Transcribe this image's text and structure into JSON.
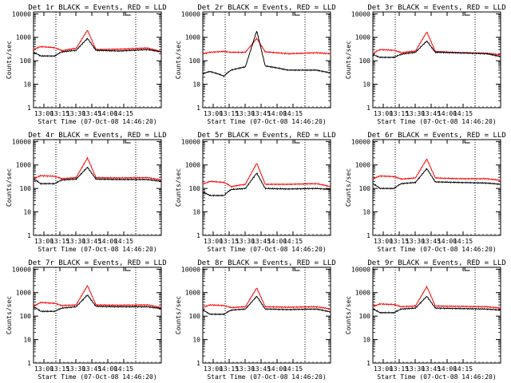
{
  "common": {
    "xlabel": "Start Time (07-Oct-08 14:46:20)",
    "ylabel": "Counts/sec",
    "xticks": [
      "13:00",
      "13:15",
      "13:30",
      "13:45",
      "14:00",
      "14:15"
    ],
    "yticks": [
      "1",
      "10",
      "100",
      "1000",
      "10000"
    ],
    "colors": {
      "events": "#000000",
      "lld": "#ff0000",
      "guides": "#000000"
    }
  },
  "chart_data": [
    {
      "type": "line",
      "title": "Det 1r BLACK = Events, RED = LLD",
      "yscale": "log",
      "ylim": [
        1,
        12000
      ],
      "x": [
        0,
        5,
        15,
        20,
        30,
        38,
        44,
        60,
        80,
        90
      ],
      "series": [
        {
          "name": "BLACK = Events",
          "values": [
            230,
            160,
            160,
            240,
            280,
            900,
            280,
            260,
            300,
            240
          ]
        },
        {
          "name": "RED = LLD",
          "values": [
            300,
            400,
            360,
            270,
            340,
            2000,
            300,
            310,
            350,
            240
          ]
        }
      ]
    },
    {
      "type": "line",
      "title": "Det 2r BLACK = Events, RED = LLD",
      "yscale": "log",
      "ylim": [
        1,
        12000
      ],
      "x": [
        0,
        5,
        15,
        20,
        30,
        38,
        44,
        60,
        80,
        90
      ],
      "series": [
        {
          "name": "BLACK = Events",
          "values": [
            28,
            35,
            22,
            40,
            55,
            1900,
            60,
            40,
            40,
            30
          ]
        },
        {
          "name": "RED = LLD",
          "values": [
            200,
            230,
            250,
            230,
            230,
            900,
            240,
            200,
            220,
            200
          ]
        }
      ]
    },
    {
      "type": "line",
      "title": "Det 3r BLACK = Events, RED = LLD",
      "yscale": "log",
      "ylim": [
        1,
        12000
      ],
      "x": [
        0,
        5,
        15,
        20,
        30,
        38,
        44,
        60,
        80,
        90
      ],
      "series": [
        {
          "name": "BLACK = Events",
          "values": [
            180,
            140,
            140,
            190,
            230,
            700,
            230,
            220,
            200,
            150
          ]
        },
        {
          "name": "RED = LLD",
          "values": [
            200,
            300,
            280,
            220,
            260,
            1700,
            250,
            220,
            210,
            180
          ]
        }
      ]
    },
    {
      "type": "line",
      "title": "Det 4r BLACK = Events, RED = LLD",
      "yscale": "log",
      "ylim": [
        1,
        12000
      ],
      "x": [
        0,
        5,
        15,
        20,
        30,
        38,
        44,
        60,
        80,
        90
      ],
      "series": [
        {
          "name": "BLACK = Events",
          "values": [
            250,
            160,
            160,
            230,
            250,
            800,
            250,
            240,
            240,
            200
          ]
        },
        {
          "name": "RED = LLD",
          "values": [
            250,
            350,
            330,
            260,
            290,
            2000,
            290,
            280,
            290,
            230
          ]
        }
      ]
    },
    {
      "type": "line",
      "title": "Det 5r BLACK = Events, RED = LLD",
      "yscale": "log",
      "ylim": [
        1,
        12000
      ],
      "x": [
        0,
        5,
        15,
        20,
        30,
        38,
        44,
        60,
        80,
        90
      ],
      "series": [
        {
          "name": "BLACK = Events",
          "values": [
            70,
            50,
            50,
            90,
            100,
            450,
            100,
            95,
            100,
            90
          ]
        },
        {
          "name": "RED = LLD",
          "values": [
            150,
            200,
            180,
            120,
            150,
            1200,
            150,
            150,
            160,
            120
          ]
        }
      ]
    },
    {
      "type": "line",
      "title": "Det 6r BLACK = Events, RED = LLD",
      "yscale": "log",
      "ylim": [
        1,
        12000
      ],
      "x": [
        0,
        5,
        15,
        20,
        30,
        38,
        44,
        60,
        80,
        90
      ],
      "series": [
        {
          "name": "BLACK = Events",
          "values": [
            160,
            100,
            100,
            160,
            180,
            700,
            190,
            180,
            170,
            150
          ]
        },
        {
          "name": "RED = LLD",
          "values": [
            250,
            340,
            320,
            250,
            280,
            1800,
            280,
            260,
            260,
            220
          ]
        }
      ]
    },
    {
      "type": "line",
      "title": "Det 7r BLACK = Events, RED = LLD",
      "yscale": "log",
      "ylim": [
        1,
        12000
      ],
      "x": [
        0,
        5,
        15,
        20,
        30,
        38,
        44,
        60,
        80,
        90
      ],
      "series": [
        {
          "name": "BLACK = Events",
          "values": [
            250,
            160,
            160,
            220,
            250,
            800,
            260,
            250,
            250,
            210
          ]
        },
        {
          "name": "RED = LLD",
          "values": [
            250,
            380,
            350,
            280,
            300,
            2000,
            300,
            290,
            300,
            230
          ]
        }
      ]
    },
    {
      "type": "line",
      "title": "Det 8r BLACK = Events, RED = LLD",
      "yscale": "log",
      "ylim": [
        1,
        12000
      ],
      "x": [
        0,
        5,
        15,
        20,
        30,
        38,
        44,
        60,
        80,
        90
      ],
      "series": [
        {
          "name": "BLACK = Events",
          "values": [
            180,
            120,
            120,
            180,
            200,
            700,
            200,
            190,
            200,
            150
          ]
        },
        {
          "name": "RED = LLD",
          "values": [
            230,
            300,
            280,
            230,
            250,
            1600,
            250,
            240,
            250,
            200
          ]
        }
      ]
    },
    {
      "type": "line",
      "title": "Det 9r BLACK = Events, RED = LLD",
      "yscale": "log",
      "ylim": [
        1,
        12000
      ],
      "x": [
        0,
        5,
        15,
        20,
        30,
        38,
        44,
        60,
        80,
        90
      ],
      "series": [
        {
          "name": "BLACK = Events",
          "values": [
            200,
            140,
            140,
            200,
            220,
            700,
            220,
            210,
            200,
            180
          ]
        },
        {
          "name": "RED = LLD",
          "values": [
            250,
            330,
            310,
            250,
            270,
            1800,
            270,
            260,
            250,
            220
          ]
        }
      ]
    }
  ]
}
